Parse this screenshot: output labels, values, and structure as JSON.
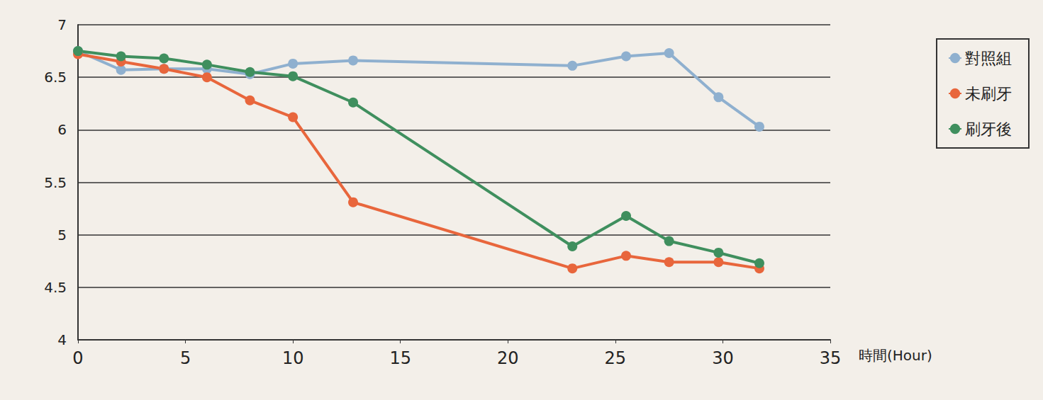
{
  "chart_data": {
    "type": "line",
    "x_label": "時間(Hour)",
    "x": [
      0,
      2,
      4,
      6,
      8,
      10,
      12.8,
      23,
      25.5,
      27.5,
      29.8,
      31.7
    ],
    "series": [
      {
        "name": "對照組",
        "color": "#8fb0cf",
        "values": [
          6.75,
          6.57,
          6.58,
          6.58,
          6.53,
          6.63,
          6.66,
          6.61,
          6.7,
          6.73,
          6.31,
          6.03
        ]
      },
      {
        "name": "未刷牙",
        "color": "#e8663c",
        "values": [
          6.72,
          6.65,
          6.58,
          6.5,
          6.28,
          6.12,
          5.31,
          4.68,
          4.8,
          4.74,
          4.74,
          4.68
        ]
      },
      {
        "name": "刷牙後",
        "color": "#3f8f5e",
        "values": [
          6.75,
          6.7,
          6.68,
          6.62,
          6.55,
          6.51,
          6.26,
          4.89,
          5.18,
          4.94,
          4.83,
          4.73
        ]
      }
    ],
    "xlim": [
      0,
      35
    ],
    "xticks": [
      0,
      5,
      10,
      15,
      20,
      25,
      30,
      35
    ],
    "ylim": [
      4,
      7
    ],
    "yticks": [
      4,
      4.5,
      5,
      5.5,
      6,
      6.5,
      7
    ],
    "grid": true,
    "legend": "right",
    "marker": "circle",
    "line_style": "solid"
  }
}
